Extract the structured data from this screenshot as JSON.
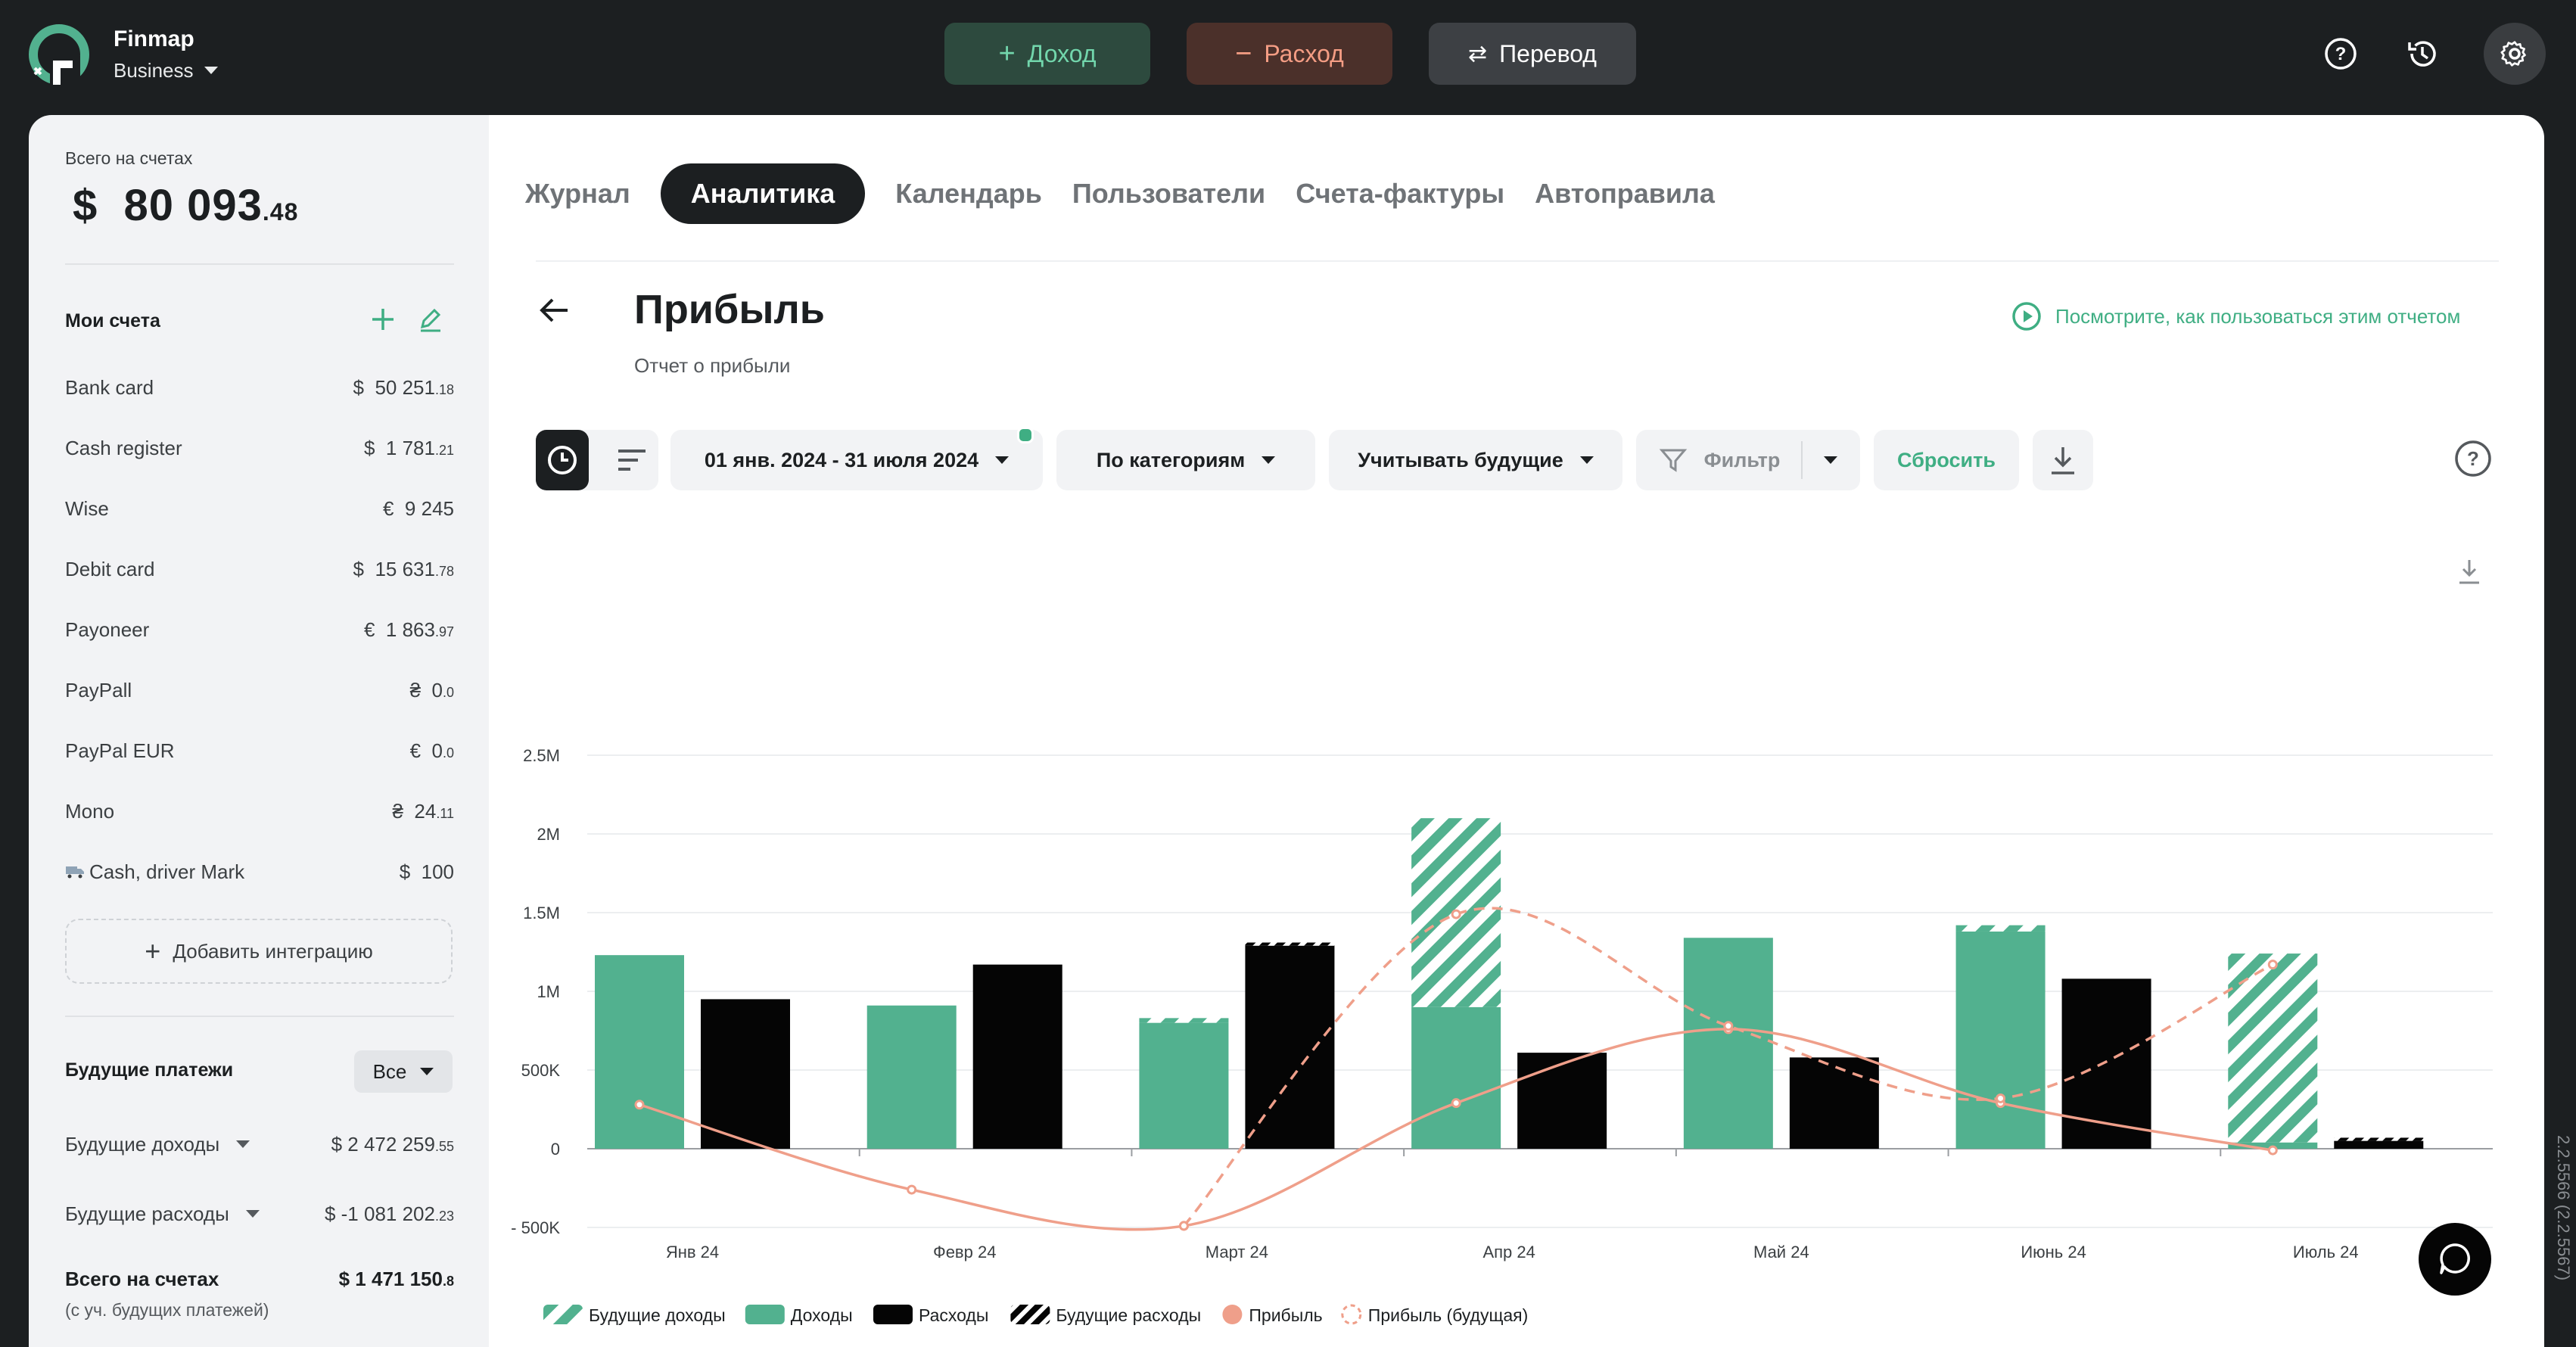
{
  "brand": {
    "name": "Finmap",
    "plan": "Business"
  },
  "top_buttons": {
    "income": "Доход",
    "expense": "Расход",
    "transfer": "Перевод"
  },
  "sidebar": {
    "total_label": "Всего на счетах",
    "total_currency": "$",
    "total_whole": "80 093",
    "total_cents": ".48",
    "my_accounts_title": "Мои счета",
    "accounts": [
      {
        "name": "Bank card",
        "currency": "$",
        "whole": "50 251",
        "cents": ".18"
      },
      {
        "name": "Cash register",
        "currency": "$",
        "whole": "1 781",
        "cents": ".21"
      },
      {
        "name": "Wise",
        "currency": "€",
        "whole": "9 245",
        "cents": ""
      },
      {
        "name": "Debit card",
        "currency": "$",
        "whole": "15 631",
        "cents": ".78"
      },
      {
        "name": "Payoneer",
        "currency": "€",
        "whole": "1 863",
        "cents": ".97"
      },
      {
        "name": "PayPall",
        "currency": "₴",
        "whole": "0",
        "cents": ".0"
      },
      {
        "name": "PayPal EUR",
        "currency": "€",
        "whole": "0",
        "cents": ".0"
      },
      {
        "name": "Mono",
        "currency": "₴",
        "whole": "24",
        "cents": ".11"
      },
      {
        "name": "Cash, driver Mark",
        "currency": "$",
        "whole": "100",
        "cents": ""
      }
    ],
    "add_integration": "Добавить интеграцию",
    "future_title": "Будущие платежи",
    "future_filter": "Все",
    "future_income_label": "Будущие доходы",
    "future_income_value": "$  2 472 259",
    "future_income_cents": ".55",
    "future_expense_label": "Будущие расходы",
    "future_expense_value": "$  -1 081 202",
    "future_expense_cents": ".23",
    "grand_total_label": "Всего на счетах",
    "grand_total_value": "$  1 471 150",
    "grand_total_cents": ".8",
    "grand_total_note": "(с уч. будущих платежей)"
  },
  "tabs": [
    "Журнал",
    "Аналитика",
    "Календарь",
    "Пользователи",
    "Счета-фактуры",
    "Автоправила"
  ],
  "active_tab": "Аналитика",
  "report": {
    "title": "Прибыль",
    "subtitle": "Отчет о прибыли",
    "howto": "Посмотрите, как пользоваться этим отчетом"
  },
  "toolbar": {
    "date_range": "01 янв. 2024 - 31 июля 2024",
    "group_by": "По категориям",
    "future_mode": "Учитывать будущие",
    "filter": "Фильтр",
    "reset": "Сбросить"
  },
  "chart_data": {
    "type": "bar",
    "categories": [
      "Янв 24",
      "Февр 24",
      "Март 24",
      "Апр 24",
      "Май 24",
      "Июнь 24",
      "Июль 24"
    ],
    "ylim": [
      -500000,
      2500000
    ],
    "y_ticks": [
      -500000,
      0,
      500000,
      1000000,
      1500000,
      2000000,
      2500000
    ],
    "y_tick_labels": [
      "- 500K",
      "0",
      "500K",
      "1M",
      "1.5M",
      "2M",
      "2.5M"
    ],
    "series": [
      {
        "name": "Доходы",
        "values": [
          1230000,
          910000,
          800000,
          900000,
          1340000,
          1380000,
          40000
        ]
      },
      {
        "name": "Будущие доходы",
        "values": [
          0,
          0,
          30000,
          1200000,
          0,
          40000,
          1200000
        ]
      },
      {
        "name": "Расходы",
        "values": [
          950000,
          1170000,
          1290000,
          610000,
          580000,
          1080000,
          50000
        ]
      },
      {
        "name": "Будущие расходы",
        "values": [
          0,
          0,
          20000,
          0,
          0,
          0,
          20000
        ]
      },
      {
        "name": "Прибыль",
        "values": [
          280000,
          -260000,
          -490000,
          290000,
          760000,
          290000,
          -10000
        ]
      },
      {
        "name": "Прибыль (будущая)",
        "values": [
          null,
          null,
          -490000,
          1490000,
          780000,
          320000,
          1170000
        ]
      }
    ],
    "legend": [
      "Будущие доходы",
      "Доходы",
      "Расходы",
      "Будущие расходы",
      "Прибыль",
      "Прибыль (будущая)"
    ],
    "colors": {
      "income": "#52b18f",
      "expense": "#050505",
      "profit": "#ef9f8a"
    }
  },
  "version": "2.2.5566 (2.2.5567)"
}
